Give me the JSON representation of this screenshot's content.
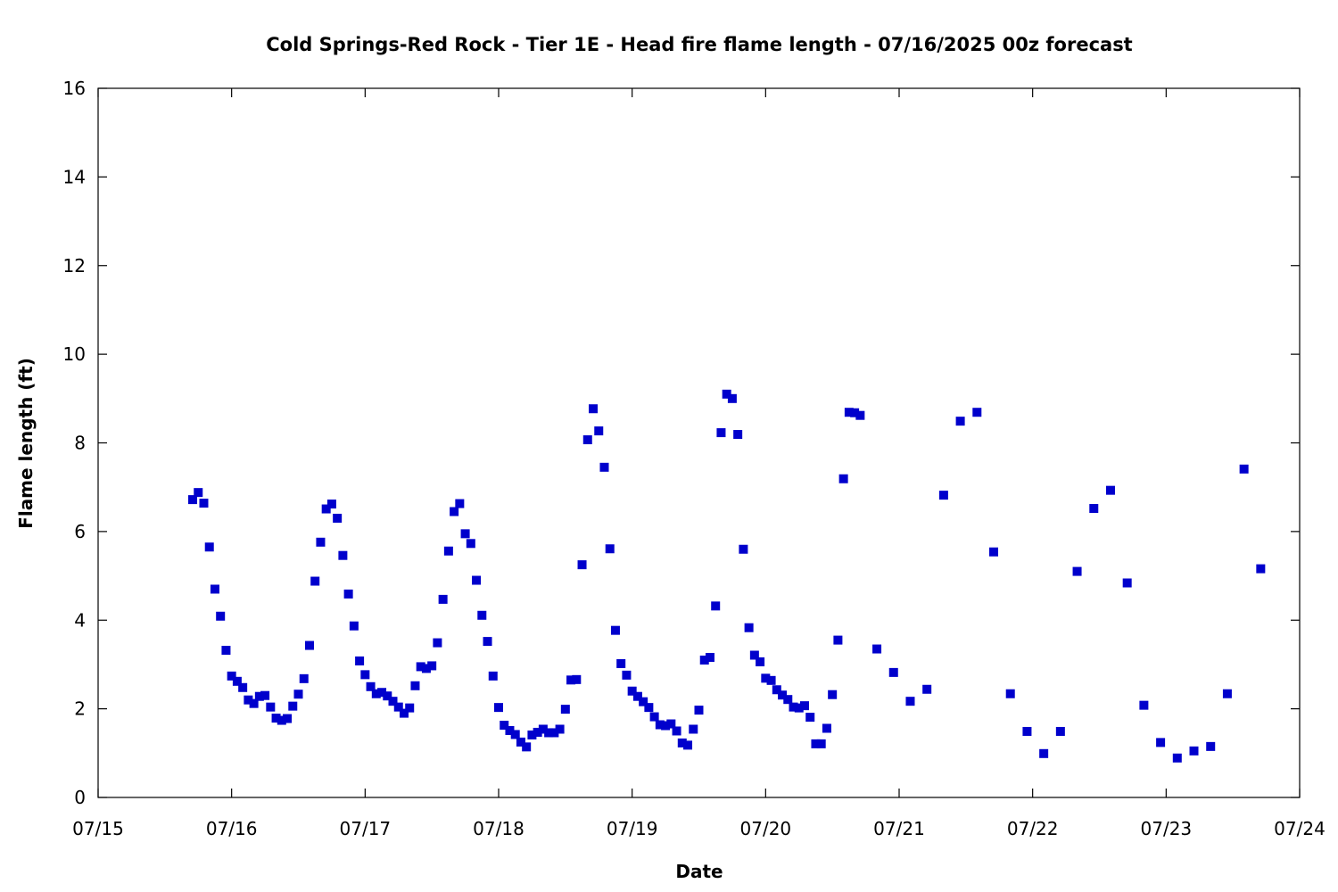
{
  "chart_data": {
    "type": "scatter",
    "title": "Cold Springs-Red Rock - Tier 1E - Head fire flame length - 07/16/2025 00z forecast",
    "xlabel": "Date",
    "ylabel": "Flame length (ft)",
    "xlim": [
      "07/15",
      "07/24"
    ],
    "ylim": [
      0,
      16
    ],
    "x_ticks": [
      "07/15",
      "07/16",
      "07/17",
      "07/18",
      "07/19",
      "07/20",
      "07/21",
      "07/22",
      "07/23",
      "07/24"
    ],
    "y_ticks": [
      0,
      2,
      4,
      6,
      8,
      10,
      12,
      14,
      16
    ],
    "grid": false,
    "legend": "none",
    "marker_color": "#0000cc",
    "marker": "square",
    "series": [
      {
        "x": [
          "07/15 17:00",
          "07/15 18:00",
          "07/15 19:00",
          "07/15 20:00",
          "07/15 21:00",
          "07/15 22:00",
          "07/15 23:00",
          "07/16 00:00",
          "07/16 01:00",
          "07/16 02:00",
          "07/16 03:00",
          "07/16 04:00",
          "07/16 05:00",
          "07/16 06:00",
          "07/16 07:00",
          "07/16 08:00",
          "07/16 09:00",
          "07/16 10:00",
          "07/16 11:00",
          "07/16 12:00",
          "07/16 13:00",
          "07/16 14:00",
          "07/16 15:00",
          "07/16 16:00",
          "07/16 17:00",
          "07/16 18:00",
          "07/16 19:00",
          "07/16 20:00",
          "07/16 21:00",
          "07/16 22:00",
          "07/16 23:00",
          "07/17 00:00",
          "07/17 01:00",
          "07/17 02:00",
          "07/17 03:00",
          "07/17 04:00",
          "07/17 05:00",
          "07/17 06:00",
          "07/17 07:00",
          "07/17 08:00",
          "07/17 09:00",
          "07/17 10:00",
          "07/17 11:00",
          "07/17 12:00",
          "07/17 13:00",
          "07/17 14:00",
          "07/17 15:00",
          "07/17 16:00",
          "07/17 17:00",
          "07/17 18:00",
          "07/17 19:00",
          "07/17 20:00",
          "07/17 21:00",
          "07/17 22:00",
          "07/17 23:00",
          "07/18 00:00",
          "07/18 01:00",
          "07/18 02:00",
          "07/18 03:00",
          "07/18 04:00",
          "07/18 05:00",
          "07/18 06:00",
          "07/18 07:00",
          "07/18 08:00",
          "07/18 09:00",
          "07/18 10:00",
          "07/18 11:00",
          "07/18 12:00",
          "07/18 13:00",
          "07/18 14:00",
          "07/18 15:00",
          "07/18 16:00",
          "07/18 17:00",
          "07/18 18:00",
          "07/18 19:00",
          "07/18 20:00",
          "07/18 21:00",
          "07/18 22:00",
          "07/18 23:00",
          "07/19 00:00",
          "07/19 01:00",
          "07/19 02:00",
          "07/19 03:00",
          "07/19 04:00",
          "07/19 05:00",
          "07/19 06:00",
          "07/19 07:00",
          "07/19 08:00",
          "07/19 09:00",
          "07/19 10:00",
          "07/19 11:00",
          "07/19 12:00",
          "07/19 13:00",
          "07/19 14:00",
          "07/19 15:00",
          "07/19 16:00",
          "07/19 17:00",
          "07/19 18:00",
          "07/19 19:00",
          "07/19 20:00",
          "07/19 21:00",
          "07/19 22:00",
          "07/19 23:00",
          "07/20 00:00",
          "07/20 01:00",
          "07/20 02:00",
          "07/20 03:00",
          "07/20 04:00",
          "07/20 05:00",
          "07/20 06:00",
          "07/20 07:00",
          "07/20 08:00",
          "07/20 09:00",
          "07/20 10:00",
          "07/20 11:00",
          "07/20 12:00",
          "07/20 13:00",
          "07/20 14:00",
          "07/20 15:00",
          "07/20 16:00",
          "07/20 17:00",
          "07/20 20:00",
          "07/20 23:00",
          "07/21 02:00",
          "07/21 05:00",
          "07/21 08:00",
          "07/21 11:00",
          "07/21 14:00",
          "07/21 17:00",
          "07/21 20:00",
          "07/21 23:00",
          "07/22 02:00",
          "07/22 05:00",
          "07/22 08:00",
          "07/22 11:00",
          "07/22 14:00",
          "07/22 17:00",
          "07/22 20:00",
          "07/22 23:00",
          "07/23 02:00",
          "07/23 05:00",
          "07/23 08:00",
          "07/23 11:00",
          "07/23 14:00",
          "07/23 17:00"
        ],
        "y": [
          6.72,
          6.88,
          6.64,
          5.65,
          4.7,
          4.09,
          3.32,
          2.74,
          2.62,
          2.48,
          2.2,
          2.12,
          2.28,
          2.3,
          2.04,
          1.79,
          1.74,
          1.78,
          2.06,
          2.33,
          2.68,
          3.43,
          4.88,
          5.76,
          6.51,
          6.62,
          6.3,
          5.46,
          4.59,
          3.87,
          3.08,
          2.77,
          2.5,
          2.34,
          2.37,
          2.29,
          2.17,
          2.04,
          1.9,
          2.02,
          2.52,
          2.95,
          2.91,
          2.97,
          3.49,
          4.47,
          5.56,
          6.45,
          6.63,
          5.95,
          5.73,
          4.9,
          4.11,
          3.52,
          2.74,
          2.03,
          1.63,
          1.51,
          1.42,
          1.25,
          1.14,
          1.41,
          1.47,
          1.54,
          1.46,
          1.46,
          1.54,
          1.99,
          2.65,
          2.66,
          5.25,
          8.07,
          8.77,
          8.27,
          7.45,
          5.61,
          3.77,
          3.02,
          2.76,
          2.4,
          2.28,
          2.16,
          2.03,
          1.82,
          1.64,
          1.62,
          1.66,
          1.5,
          1.23,
          1.18,
          1.54,
          1.97,
          3.1,
          3.16,
          4.32,
          8.23,
          9.1,
          9.0,
          8.19,
          5.6,
          3.83,
          3.21,
          3.06,
          2.69,
          2.64,
          2.43,
          2.31,
          2.21,
          2.04,
          2.02,
          2.07,
          1.81,
          1.21,
          1.21,
          1.56,
          2.32,
          3.55,
          7.19,
          8.69,
          8.68,
          8.62,
          3.35,
          2.82,
          2.17,
          2.44,
          6.82,
          8.49,
          8.69,
          5.54,
          2.34,
          1.49,
          0.99,
          1.49,
          5.1,
          6.52,
          6.93,
          4.84,
          2.08,
          1.24,
          0.89,
          1.05,
          1.15,
          2.34,
          7.41,
          5.16
        ]
      }
    ]
  }
}
